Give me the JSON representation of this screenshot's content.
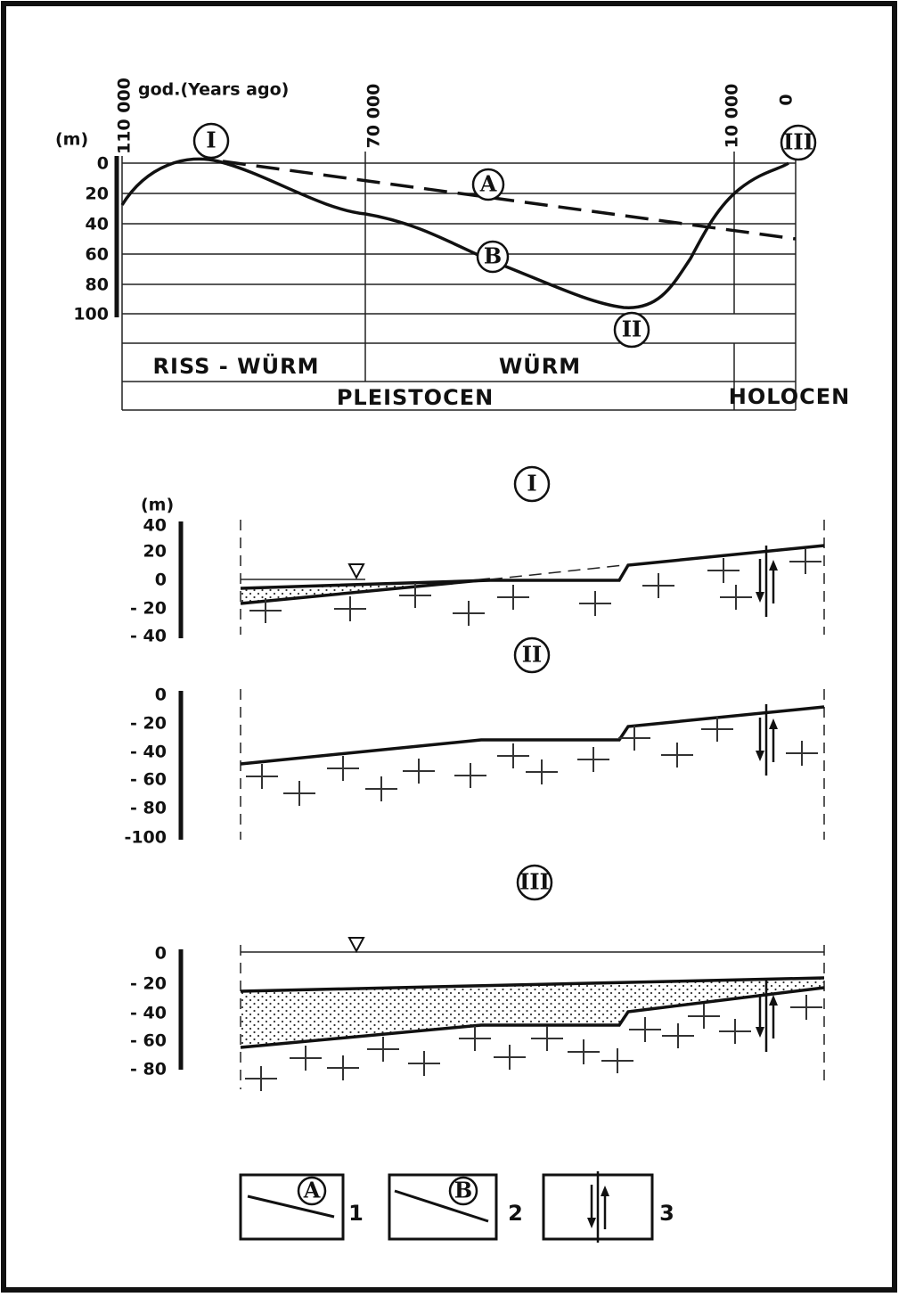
{
  "top_chart": {
    "time_axis_title": "god.(Years ago)",
    "time_labels": [
      "110 000",
      "70 000",
      "10 000",
      "0"
    ],
    "depth_unit": "(m)",
    "depth_labels": [
      "0",
      "20",
      "40",
      "60",
      "80",
      "100"
    ],
    "curve_labels": [
      "A",
      "B"
    ],
    "stage_markers": [
      "I",
      "II",
      "III"
    ],
    "stages": [
      "RISS - WÜRM",
      "WÜRM"
    ],
    "epochs": [
      "PLEISTOCEN",
      "HOLOCEN"
    ]
  },
  "sections": [
    {
      "title": "I",
      "unit": "(m)",
      "depth_labels": [
        "40",
        "20",
        "0",
        "- 20",
        "- 40"
      ]
    },
    {
      "title": "II",
      "depth_labels": [
        "0",
        "- 20",
        "- 40",
        "- 60",
        "- 80",
        "-100"
      ]
    },
    {
      "title": "III",
      "depth_labels": [
        "0",
        "- 20",
        "- 40",
        "- 60",
        "- 80"
      ]
    }
  ],
  "legend": [
    {
      "symbol": "A",
      "number": "1"
    },
    {
      "symbol": "B",
      "number": "2"
    },
    {
      "number": "3"
    }
  ]
}
